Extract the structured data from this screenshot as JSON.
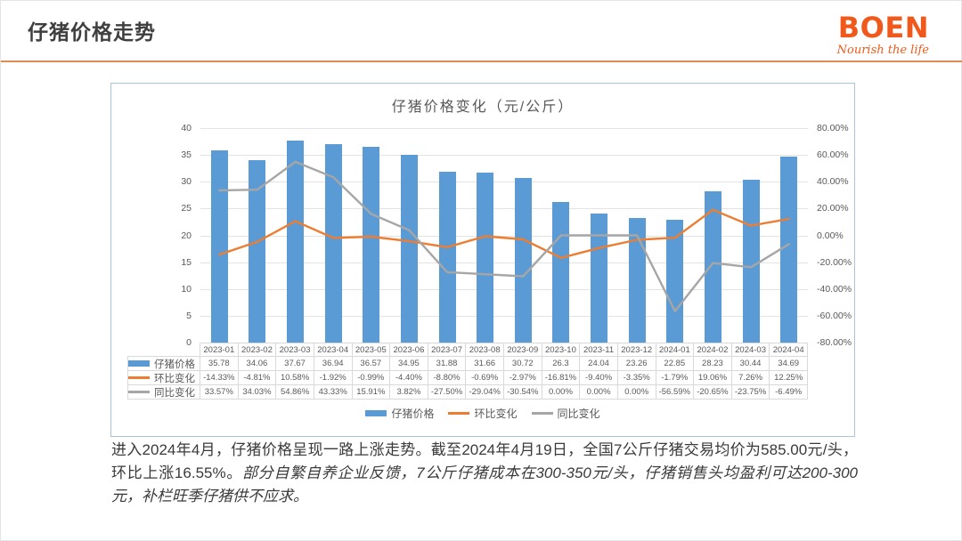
{
  "header": {
    "title": "仔猪价格走势",
    "logo_text": "BOEN",
    "logo_tagline": "Nourish the life"
  },
  "colors": {
    "bar_blue": "#5B9BD5",
    "mom_orange": "#ED7D31",
    "yoy_gray": "#A6A6A6",
    "header_rule_orange": "#DE8C52",
    "logo_orange": "#F0591B",
    "panel_border_blue": "#A9C4D9",
    "axis_text_gray": "#595959",
    "table_border_gray": "#D9D9D9"
  },
  "chart_data": {
    "type": "combo-bar-line",
    "title": "仔猪价格变化（元/公斤）",
    "categories": [
      "2023-01",
      "2023-02",
      "2023-03",
      "2023-04",
      "2023-05",
      "2023-06",
      "2023-07",
      "2023-08",
      "2023-09",
      "2023-10",
      "2023-11",
      "2023-12",
      "2024-01",
      "2024-02",
      "2024-03",
      "2024-04"
    ],
    "series": [
      {
        "name": "仔猪价格",
        "chart": "bar",
        "axis": "left",
        "values": [
          35.78,
          34.06,
          37.67,
          36.94,
          36.57,
          34.95,
          31.88,
          31.66,
          30.72,
          26.3,
          24.04,
          23.26,
          22.85,
          28.23,
          30.44,
          34.69
        ],
        "display": [
          "35.78",
          "34.06",
          "37.67",
          "36.94",
          "36.57",
          "34.95",
          "31.88",
          "31.66",
          "30.72",
          "26.3",
          "24.04",
          "23.26",
          "22.85",
          "28.23",
          "30.44",
          "34.69"
        ]
      },
      {
        "name": "环比变化",
        "chart": "line",
        "axis": "right",
        "values": [
          -14.33,
          -4.81,
          10.58,
          -1.92,
          -0.99,
          -4.4,
          -8.8,
          -0.69,
          -2.97,
          -16.81,
          -9.4,
          -3.35,
          -1.79,
          19.06,
          7.26,
          12.25
        ],
        "display": [
          "-14.33%",
          "-4.81%",
          "10.58%",
          "-1.92%",
          "-0.99%",
          "-4.40%",
          "-8.80%",
          "-0.69%",
          "-2.97%",
          "-16.81%",
          "-9.40%",
          "-3.35%",
          "-1.79%",
          "19.06%",
          "7.26%",
          "12.25%"
        ]
      },
      {
        "name": "同比变化",
        "chart": "line",
        "axis": "right",
        "values": [
          33.57,
          34.03,
          54.86,
          43.33,
          15.91,
          3.82,
          -27.5,
          -29.04,
          -30.54,
          0,
          0,
          0,
          -56.59,
          -20.65,
          -23.75,
          -6.49
        ],
        "display": [
          "33.57%",
          "34.03%",
          "54.86%",
          "43.33%",
          "15.91%",
          "3.82%",
          "-27.50%",
          "-29.04%",
          "-30.54%",
          "0.00%",
          "0.00%",
          "0.00%",
          "-56.59%",
          "-20.65%",
          "-23.75%",
          "-6.49%"
        ]
      }
    ],
    "left_axis": {
      "min": 0,
      "max": 40,
      "step": 5,
      "tick_labels": [
        "0",
        "5",
        "10",
        "15",
        "20",
        "25",
        "30",
        "35",
        "40"
      ]
    },
    "right_axis": {
      "min": -80,
      "max": 80,
      "step": 20,
      "tick_labels": [
        "-80.00%",
        "-60.00%",
        "-40.00%",
        "-20.00%",
        "0.00%",
        "20.00%",
        "40.00%",
        "60.00%",
        "80.00%"
      ]
    },
    "grid": true,
    "legend_position": "bottom",
    "data_table_shown": true
  },
  "summary": {
    "normal": "进入2024年4月，仔猪价格呈现一路上涨走势。截至2024年4月19日，全国7公斤仔猪交易均价为585.00元/头，环比上涨16.55%。",
    "italic": "部分自繁自养企业反馈，7公斤仔猪成本在300-350元/头，仔猪销售头均盈利可达200-300元，补栏旺季仔猪供不应求。"
  }
}
